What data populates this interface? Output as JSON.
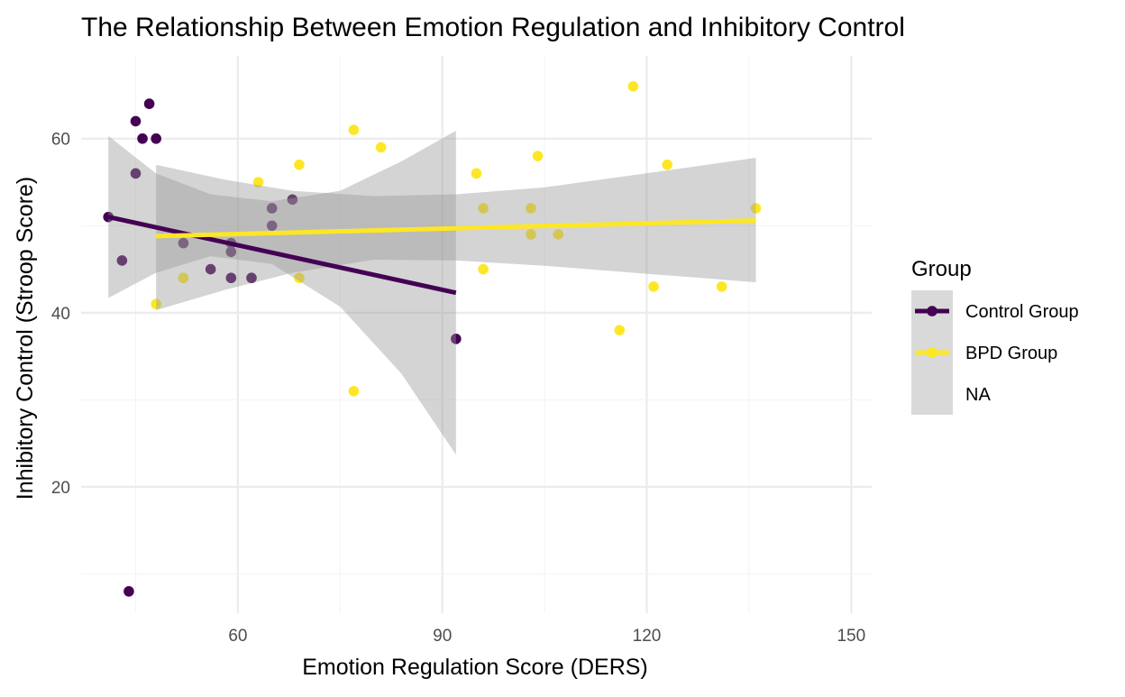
{
  "chart_data": {
    "type": "scatter",
    "title": "The Relationship Between Emotion Regulation and Inhibitory Control",
    "xlabel": "Emotion Regulation Score (DERS)",
    "ylabel": "Inhibitory Control (Stroop Score)",
    "xlim": [
      37,
      153
    ],
    "ylim": [
      5.5,
      69.5
    ],
    "x_ticks": [
      60,
      90,
      120,
      150
    ],
    "y_ticks": [
      20,
      40,
      60
    ],
    "grid": true,
    "legend": {
      "title": "Group",
      "placement": "right",
      "entries": [
        "Control Group",
        "BPD Group",
        "NA"
      ]
    },
    "colors": {
      "control": "#440154",
      "bpd": "#FDE725",
      "ribbon": "#999999",
      "grid_major": "#EBEBEB",
      "grid_minor": "#F4F4F4",
      "legend_key": "#D9D9D9"
    },
    "series": [
      {
        "name": "Control Group",
        "points": [
          {
            "x": 41,
            "y": 51
          },
          {
            "x": 43,
            "y": 46
          },
          {
            "x": 44,
            "y": 8
          },
          {
            "x": 45,
            "y": 62
          },
          {
            "x": 45,
            "y": 56
          },
          {
            "x": 46,
            "y": 60
          },
          {
            "x": 47,
            "y": 64
          },
          {
            "x": 48,
            "y": 60
          },
          {
            "x": 52,
            "y": 48
          },
          {
            "x": 56,
            "y": 45
          },
          {
            "x": 59,
            "y": 48
          },
          {
            "x": 59,
            "y": 47
          },
          {
            "x": 59,
            "y": 44
          },
          {
            "x": 62,
            "y": 44
          },
          {
            "x": 65,
            "y": 52
          },
          {
            "x": 65,
            "y": 50
          },
          {
            "x": 68,
            "y": 53
          },
          {
            "x": 92,
            "y": 37
          }
        ],
        "fit": {
          "x": [
            41,
            92
          ],
          "y": [
            51,
            42.3
          ]
        },
        "band": {
          "x": [
            41,
            48,
            56,
            65,
            75,
            84,
            92
          ],
          "lower": [
            41.7,
            44.6,
            46.5,
            45.6,
            40.7,
            33.0,
            23.7
          ],
          "upper": [
            60.3,
            56.0,
            53.6,
            52.8,
            54.0,
            57.4,
            60.9
          ]
        }
      },
      {
        "name": "BPD Group",
        "points": [
          {
            "x": 48,
            "y": 41
          },
          {
            "x": 52,
            "y": 44
          },
          {
            "x": 63,
            "y": 55
          },
          {
            "x": 69,
            "y": 57
          },
          {
            "x": 69,
            "y": 44
          },
          {
            "x": 77,
            "y": 61
          },
          {
            "x": 77,
            "y": 31
          },
          {
            "x": 81,
            "y": 59
          },
          {
            "x": 95,
            "y": 56
          },
          {
            "x": 96,
            "y": 52
          },
          {
            "x": 96,
            "y": 45
          },
          {
            "x": 103,
            "y": 52
          },
          {
            "x": 103,
            "y": 49
          },
          {
            "x": 104,
            "y": 58
          },
          {
            "x": 107,
            "y": 49
          },
          {
            "x": 116,
            "y": 38
          },
          {
            "x": 118,
            "y": 66
          },
          {
            "x": 121,
            "y": 43
          },
          {
            "x": 123,
            "y": 57
          },
          {
            "x": 131,
            "y": 43
          },
          {
            "x": 136,
            "y": 52
          }
        ],
        "fit": {
          "x": [
            48,
            136
          ],
          "y": [
            48.8,
            50.6
          ]
        },
        "band": {
          "x": [
            48,
            58,
            68,
            80,
            92,
            105,
            118,
            128,
            136
          ],
          "lower": [
            40.3,
            42.6,
            44.6,
            46.1,
            46.0,
            45.4,
            44.6,
            44.0,
            43.5
          ],
          "upper": [
            57.0,
            55.3,
            54.0,
            53.4,
            53.6,
            54.4,
            55.8,
            56.9,
            57.8
          ]
        }
      }
    ]
  }
}
